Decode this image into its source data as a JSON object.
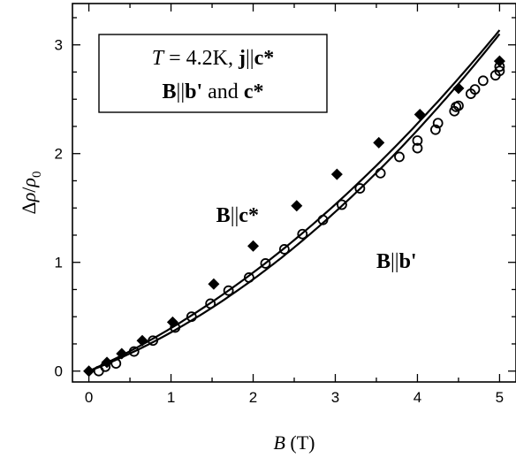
{
  "chart_data": {
    "type": "scatter",
    "title": "",
    "xlabel": {
      "var": "B",
      "unit": " (T)"
    },
    "ylabel": {
      "prefix": "Δ",
      "rho": "ρ",
      "slash": "/",
      "rho0": "ρ",
      "sub0": "0"
    },
    "xlim": [
      -0.2,
      5.2
    ],
    "ylim": [
      -0.1,
      3.38
    ],
    "x_ticks": [
      0,
      1,
      2,
      3,
      4,
      5
    ],
    "y_ticks": [
      0,
      1,
      2,
      3
    ],
    "legend_box": {
      "line1": {
        "T": "T",
        "eq": " = 4.2K, ",
        "j": "j",
        "par": "||",
        "c": "c*"
      },
      "line2": {
        "B": "B",
        "par": "||",
        "b": "b'",
        "and": " and ",
        "c": "c*"
      }
    },
    "series": [
      {
        "name": "B||c*",
        "marker": "filled-diamond",
        "points": [
          [
            0.0,
            0.0
          ],
          [
            0.22,
            0.08
          ],
          [
            0.4,
            0.16
          ],
          [
            0.65,
            0.28
          ],
          [
            1.02,
            0.45
          ],
          [
            1.52,
            0.8
          ],
          [
            2.0,
            1.15
          ],
          [
            2.53,
            1.52
          ],
          [
            3.02,
            1.81
          ],
          [
            3.53,
            2.1
          ],
          [
            4.03,
            2.36
          ],
          [
            4.5,
            2.6
          ],
          [
            5.0,
            2.85
          ]
        ],
        "fit": {
          "a": 0.337,
          "b": 0.058
        }
      },
      {
        "name": "B||b'",
        "marker": "open-circle",
        "points": [
          [
            0.12,
            0.0
          ],
          [
            0.2,
            0.04
          ],
          [
            0.33,
            0.07
          ],
          [
            0.55,
            0.18
          ],
          [
            0.78,
            0.28
          ],
          [
            1.05,
            0.4
          ],
          [
            1.25,
            0.5
          ],
          [
            1.48,
            0.62
          ],
          [
            1.7,
            0.74
          ],
          [
            1.95,
            0.86
          ],
          [
            2.15,
            0.99
          ],
          [
            2.38,
            1.12
          ],
          [
            2.6,
            1.26
          ],
          [
            2.85,
            1.39
          ],
          [
            3.08,
            1.53
          ],
          [
            3.3,
            1.68
          ],
          [
            3.55,
            1.82
          ],
          [
            3.78,
            1.97
          ],
          [
            4.0,
            2.05
          ],
          [
            4.0,
            2.12
          ],
          [
            4.22,
            2.22
          ],
          [
            4.25,
            2.28
          ],
          [
            4.45,
            2.39
          ],
          [
            4.47,
            2.43
          ],
          [
            4.5,
            2.44
          ],
          [
            4.65,
            2.55
          ],
          [
            4.7,
            2.59
          ],
          [
            4.8,
            2.67
          ],
          [
            4.95,
            2.72
          ],
          [
            5.0,
            2.76
          ],
          [
            5.0,
            2.8
          ]
        ],
        "fit": {
          "a": 0.29,
          "b": 0.066
        }
      }
    ],
    "annotations": [
      {
        "id": "c",
        "main": "B",
        "par": "||",
        "tail": "c*",
        "x": 1.55,
        "y": 1.37
      },
      {
        "id": "b",
        "main": "B",
        "par": "||",
        "tail": "b'",
        "x": 3.5,
        "y": 0.95
      }
    ]
  }
}
